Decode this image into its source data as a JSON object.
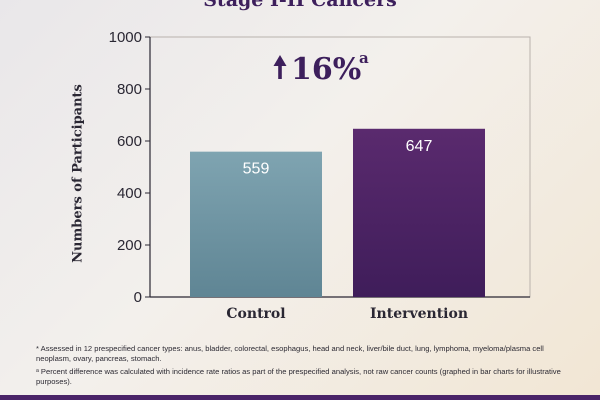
{
  "chart_data": {
    "type": "bar",
    "title": "Stage I-II Cancers",
    "ylabel": "Numbers of Participants",
    "categories": [
      "Control",
      "Intervention"
    ],
    "values": [
      559,
      647
    ],
    "ylim": [
      0,
      1000
    ],
    "yticks": [
      0,
      200,
      400,
      600,
      800,
      1000
    ],
    "grid": false,
    "annotation": {
      "arrow": "up-arrow",
      "text": "16%",
      "superscript": "a"
    },
    "colors": {
      "control": "#6f95a3",
      "intervention": "#4b2366",
      "annotation": "#3d1f5c"
    }
  },
  "footnotes": [
    "* Assessed in 12 prespecified cancer types: anus, bladder, colorectal, esophagus, head and neck, liver/bile duct, lung, lymphoma, myeloma/plasma cell neoplasm, ovary, pancreas, stomach.",
    "ᵃ Percent difference was calculated with incidence rate ratios as part of the prespecified analysis, not raw cancer counts (graphed in bar charts for illustrative purposes)."
  ]
}
